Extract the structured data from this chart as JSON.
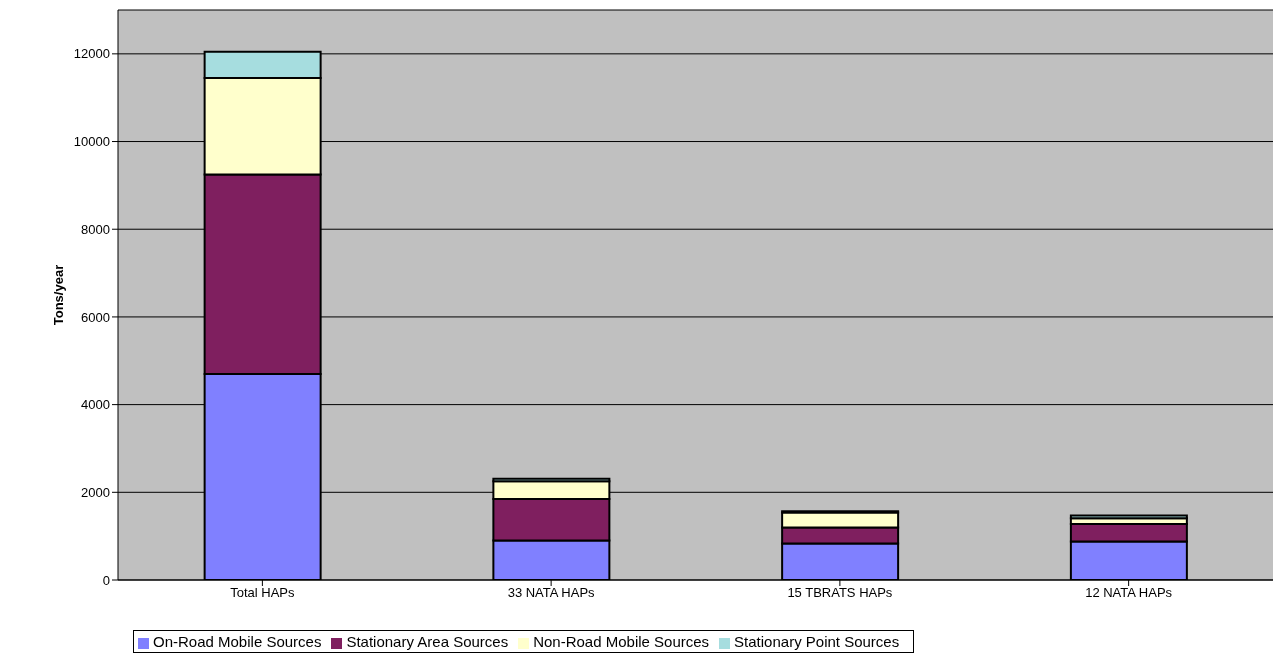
{
  "chart_data": {
    "type": "bar",
    "stacked": true,
    "ylabel": "Tons/year",
    "categories": [
      "Total HAPs",
      "33 NATA HAPs",
      "15 TBRATS HAPs",
      "12 NATA HAPs"
    ],
    "series": [
      {
        "name": "On-Road Mobile Sources",
        "color": "#8080ff",
        "values": [
          4700,
          900,
          830,
          880
        ]
      },
      {
        "name": "Stationary Area Sources",
        "color": "#7f1f5f",
        "values": [
          4550,
          950,
          370,
          400
        ]
      },
      {
        "name": "Non-Road Mobile Sources",
        "color": "#ffffcc",
        "values": [
          2200,
          400,
          340,
          130
        ]
      },
      {
        "name": "Stationary Point Sources",
        "color": "#a6dddf",
        "values": [
          600,
          60,
          30,
          60
        ]
      }
    ],
    "ylim": [
      0,
      13000
    ],
    "yticks": [
      0,
      2000,
      4000,
      6000,
      8000,
      10000,
      12000
    ],
    "grid": "y",
    "legend": "bottom"
  }
}
